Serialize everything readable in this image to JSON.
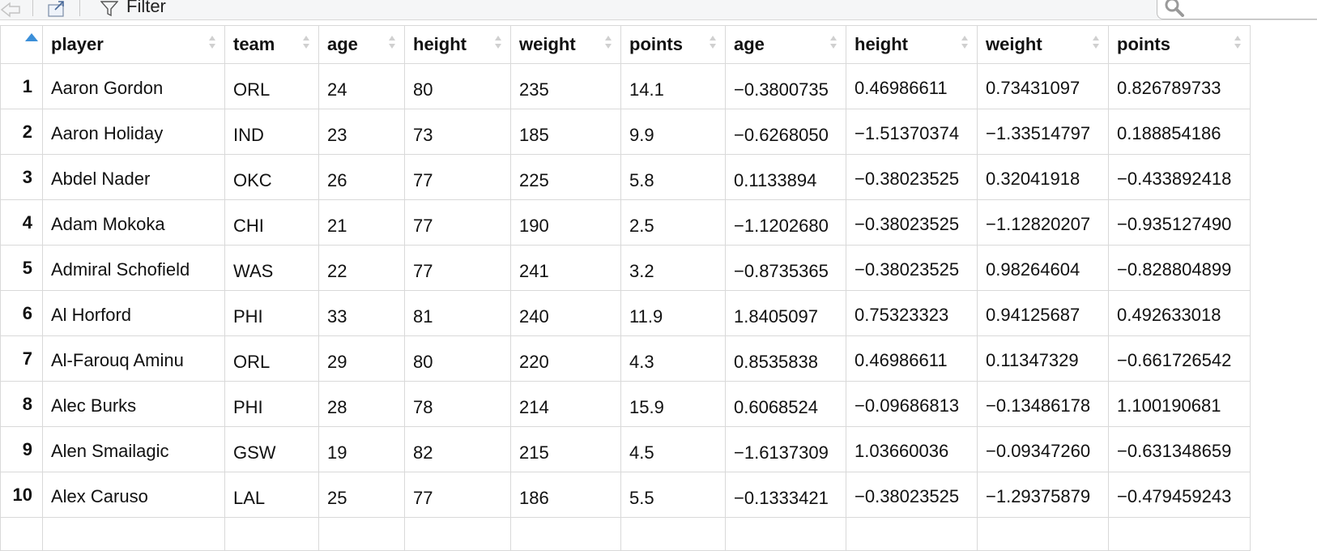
{
  "toolbar": {
    "filter_label": "Filter",
    "icons": [
      "back-arrow-icon",
      "popout-window-icon",
      "funnel-icon",
      "search-icon"
    ]
  },
  "table": {
    "columns": [
      "player",
      "team",
      "age",
      "height",
      "weight",
      "points",
      "age",
      "height",
      "weight",
      "points"
    ],
    "rows": [
      {
        "n": "1",
        "cells": [
          "Aaron Gordon",
          "ORL",
          "24",
          "80",
          "235",
          "14.1",
          "−0.3800735",
          "0.46986611",
          "0.73431097",
          "0.826789733"
        ]
      },
      {
        "n": "2",
        "cells": [
          "Aaron Holiday",
          "IND",
          "23",
          "73",
          "185",
          "9.9",
          "−0.6268050",
          "−1.51370374",
          "−1.33514797",
          "0.188854186"
        ]
      },
      {
        "n": "3",
        "cells": [
          "Abdel Nader",
          "OKC",
          "26",
          "77",
          "225",
          "5.8",
          "0.1133894",
          "−0.38023525",
          "0.32041918",
          "−0.433892418"
        ]
      },
      {
        "n": "4",
        "cells": [
          "Adam Mokoka",
          "CHI",
          "21",
          "77",
          "190",
          "2.5",
          "−1.1202680",
          "−0.38023525",
          "−1.12820207",
          "−0.935127490"
        ]
      },
      {
        "n": "5",
        "cells": [
          "Admiral Schofield",
          "WAS",
          "22",
          "77",
          "241",
          "3.2",
          "−0.8735365",
          "−0.38023525",
          "0.98264604",
          "−0.828804899"
        ]
      },
      {
        "n": "6",
        "cells": [
          "Al Horford",
          "PHI",
          "33",
          "81",
          "240",
          "11.9",
          "1.8405097",
          "0.75323323",
          "0.94125687",
          "0.492633018"
        ]
      },
      {
        "n": "7",
        "cells": [
          "Al-Farouq Aminu",
          "ORL",
          "29",
          "80",
          "220",
          "4.3",
          "0.8535838",
          "0.46986611",
          "0.11347329",
          "−0.661726542"
        ]
      },
      {
        "n": "8",
        "cells": [
          "Alec Burks",
          "PHI",
          "28",
          "78",
          "214",
          "15.9",
          "0.6068524",
          "−0.09686813",
          "−0.13486178",
          "1.100190681"
        ]
      },
      {
        "n": "9",
        "cells": [
          "Alen Smailagic",
          "GSW",
          "19",
          "82",
          "215",
          "4.5",
          "−1.6137309",
          "1.03660036",
          "−0.09347260",
          "−0.631348659"
        ]
      },
      {
        "n": "10",
        "cells": [
          "Alex Caruso",
          "LAL",
          "25",
          "77",
          "186",
          "5.5",
          "−0.1333421",
          "−0.38023525",
          "−1.29375879",
          "−0.479459243"
        ]
      }
    ]
  }
}
